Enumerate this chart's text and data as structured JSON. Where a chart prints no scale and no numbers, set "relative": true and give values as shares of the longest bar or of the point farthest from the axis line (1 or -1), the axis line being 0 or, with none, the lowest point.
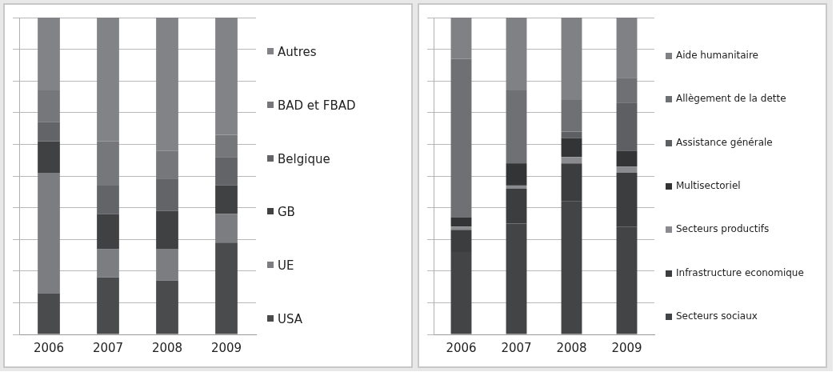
{
  "chart_data": [
    {
      "type": "bar",
      "stacked": true,
      "relative": true,
      "grid": "y",
      "legend": "right",
      "categories": [
        "2006",
        "2007",
        "2008",
        "2009"
      ],
      "series": [
        {
          "name": "USA",
          "color": "#4a4b4d",
          "values": [
            0.13,
            0.18,
            0.17,
            0.29
          ]
        },
        {
          "name": "UE",
          "color": "#7c7d80",
          "values": [
            0.38,
            0.09,
            0.1,
            0.09
          ]
        },
        {
          "name": "GB",
          "color": "#404142",
          "values": [
            0.1,
            0.11,
            0.12,
            0.09
          ]
        },
        {
          "name": "Belgique",
          "color": "#636467",
          "values": [
            0.06,
            0.09,
            0.1,
            0.09
          ]
        },
        {
          "name": "BAD et FBAD",
          "color": "#76777a",
          "values": [
            0.1,
            0.14,
            0.09,
            0.07
          ]
        },
        {
          "name": "Autres",
          "color": "#828387",
          "values": [
            0.23,
            0.39,
            0.42,
            0.37
          ]
        }
      ]
    },
    {
      "type": "bar",
      "stacked": true,
      "relative": true,
      "grid": "y",
      "legend": "right",
      "categories": [
        "2006",
        "2007",
        "2008",
        "2009"
      ],
      "series": [
        {
          "name": "Secteurs sociaux",
          "color": "#434446",
          "values": [
            0.26,
            0.35,
            0.42,
            0.34
          ]
        },
        {
          "name": "Infrastructure economique",
          "color": "#3c3d3f",
          "values": [
            0.07,
            0.11,
            0.12,
            0.17
          ]
        },
        {
          "name": "Secteurs productifs",
          "color": "#8a8b8e",
          "values": [
            0.01,
            0.01,
            0.02,
            0.02
          ]
        },
        {
          "name": "Multisectoriel",
          "color": "#333436",
          "values": [
            0.03,
            0.07,
            0.06,
            0.05
          ]
        },
        {
          "name": "Assistance générale",
          "color": "#5e5f62",
          "values": [
            0,
            0,
            0.02,
            0.15
          ]
        },
        {
          "name": "Allègement de la dette",
          "color": "#6f7073",
          "values": [
            0.5,
            0.23,
            0.1,
            0.08
          ]
        },
        {
          "name": "Aide humanitaire",
          "color": "#808185",
          "values": [
            0.13,
            0.23,
            0.26,
            0.19
          ]
        }
      ]
    }
  ]
}
